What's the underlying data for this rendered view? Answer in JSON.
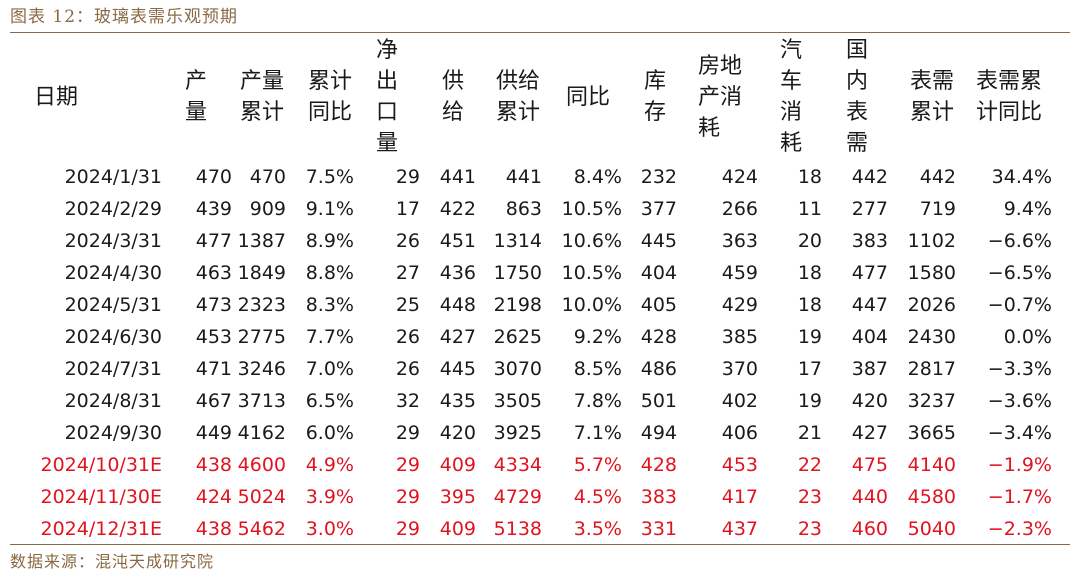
{
  "caption": "图表 12：玻璃表需乐观预期",
  "source": "数据来源：混沌天成研究院",
  "headers": {
    "date": "日期",
    "output": [
      "产",
      "量"
    ],
    "output_cum": [
      "产量",
      "累计"
    ],
    "cum_yoy": [
      "累计",
      "同比"
    ],
    "net_export": [
      "净",
      "出",
      "口",
      "量"
    ],
    "supply": [
      "供",
      "给"
    ],
    "supply_cum": [
      "供给",
      "累计"
    ],
    "yoy": "同比",
    "inventory": [
      "库",
      "存"
    ],
    "real_estate": [
      "房地",
      "产消",
      "耗"
    ],
    "auto": [
      "汽",
      "车",
      "消",
      "耗"
    ],
    "domestic": [
      "国",
      "内",
      "表",
      "需"
    ],
    "demand_cum": [
      "表需",
      "累计"
    ],
    "demand_cum_yoy": [
      "表需累",
      "计同比"
    ]
  },
  "rows": [
    {
      "forecast": false,
      "cells": [
        "2024/1/31",
        "470",
        "470",
        "7.5%",
        "29",
        "441",
        "441",
        "8.4%",
        "232",
        "424",
        "18",
        "442",
        "442",
        "34.4%"
      ]
    },
    {
      "forecast": false,
      "cells": [
        "2024/2/29",
        "439",
        "909",
        "9.1%",
        "17",
        "422",
        "863",
        "10.5%",
        "377",
        "266",
        "11",
        "277",
        "719",
        "9.4%"
      ]
    },
    {
      "forecast": false,
      "cells": [
        "2024/3/31",
        "477",
        "1387",
        "8.9%",
        "26",
        "451",
        "1314",
        "10.6%",
        "445",
        "363",
        "20",
        "383",
        "1102",
        "−6.6%"
      ]
    },
    {
      "forecast": false,
      "cells": [
        "2024/4/30",
        "463",
        "1849",
        "8.8%",
        "27",
        "436",
        "1750",
        "10.5%",
        "404",
        "459",
        "18",
        "477",
        "1580",
        "−6.5%"
      ]
    },
    {
      "forecast": false,
      "cells": [
        "2024/5/31",
        "473",
        "2323",
        "8.3%",
        "25",
        "448",
        "2198",
        "10.0%",
        "405",
        "429",
        "18",
        "447",
        "2026",
        "−0.7%"
      ]
    },
    {
      "forecast": false,
      "cells": [
        "2024/6/30",
        "453",
        "2775",
        "7.7%",
        "26",
        "427",
        "2625",
        "9.2%",
        "428",
        "385",
        "19",
        "404",
        "2430",
        "0.0%"
      ]
    },
    {
      "forecast": false,
      "cells": [
        "2024/7/31",
        "471",
        "3246",
        "7.0%",
        "26",
        "445",
        "3070",
        "8.5%",
        "486",
        "370",
        "17",
        "387",
        "2817",
        "−3.3%"
      ]
    },
    {
      "forecast": false,
      "cells": [
        "2024/8/31",
        "467",
        "3713",
        "6.5%",
        "32",
        "435",
        "3505",
        "7.8%",
        "501",
        "402",
        "19",
        "420",
        "3237",
        "−3.6%"
      ]
    },
    {
      "forecast": false,
      "cells": [
        "2024/9/30",
        "449",
        "4162",
        "6.0%",
        "29",
        "420",
        "3925",
        "7.1%",
        "494",
        "406",
        "21",
        "427",
        "3665",
        "−3.4%"
      ]
    },
    {
      "forecast": true,
      "cells": [
        "2024/10/31E",
        "438",
        "4600",
        "4.9%",
        "29",
        "409",
        "4334",
        "5.7%",
        "428",
        "453",
        "22",
        "475",
        "4140",
        "−1.9%"
      ]
    },
    {
      "forecast": true,
      "cells": [
        "2024/11/30E",
        "424",
        "5024",
        "3.9%",
        "29",
        "395",
        "4729",
        "4.5%",
        "383",
        "417",
        "23",
        "440",
        "4580",
        "−1.7%"
      ]
    },
    {
      "forecast": true,
      "cells": [
        "2024/12/31E",
        "438",
        "5462",
        "3.0%",
        "29",
        "409",
        "5138",
        "3.5%",
        "331",
        "437",
        "23",
        "460",
        "5040",
        "−2.3%"
      ]
    }
  ],
  "colors": {
    "caption": "#8a6a44",
    "forecast": "#e0141e",
    "text": "#1a1a1a"
  }
}
